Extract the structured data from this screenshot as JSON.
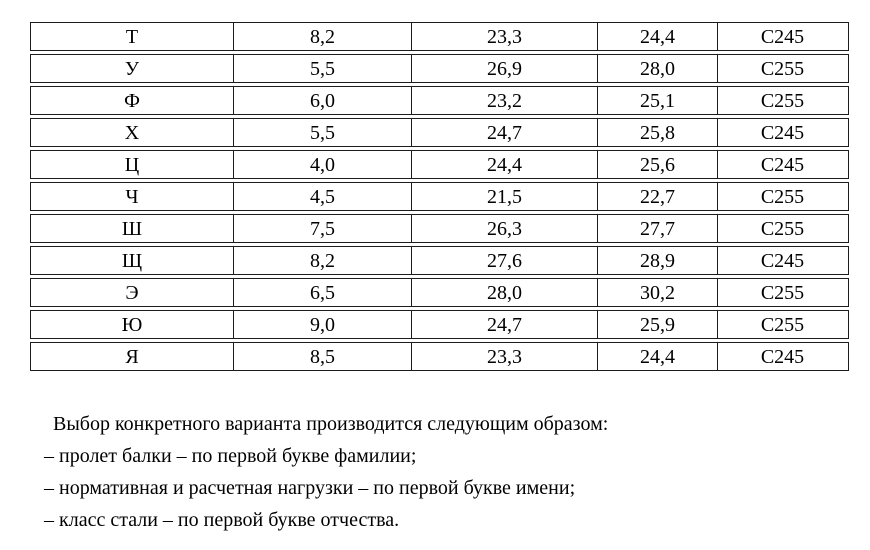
{
  "page": {
    "background": "#ffffff",
    "text_color": "#000000",
    "border_color": "#1c1c1c"
  },
  "table": {
    "rows": [
      [
        "Т",
        "8,2",
        "23,3",
        "24,4",
        "С245"
      ],
      [
        "У",
        "5,5",
        "26,9",
        "28,0",
        "С255"
      ],
      [
        "Ф",
        "6,0",
        "23,2",
        "25,1",
        "С255"
      ],
      [
        "Х",
        "5,5",
        "24,7",
        "25,8",
        "С245"
      ],
      [
        "Ц",
        "4,0",
        "24,4",
        "25,6",
        "С245"
      ],
      [
        "Ч",
        "4,5",
        "21,5",
        "22,7",
        "С255"
      ],
      [
        "Ш",
        "7,5",
        "26,3",
        "27,7",
        "С255"
      ],
      [
        "Щ",
        "8,2",
        "27,6",
        "28,9",
        "С245"
      ],
      [
        "Э",
        "6,5",
        "28,0",
        "30,2",
        "С255"
      ],
      [
        "Ю",
        "9,0",
        "24,7",
        "25,9",
        "С255"
      ],
      [
        "Я",
        "8,5",
        "23,3",
        "24,4",
        "С245"
      ]
    ]
  },
  "notes": {
    "intro": "Выбор конкретного варианта производится следующим образом:",
    "items": [
      "– пролет балки – по первой букве фамилии;",
      "– нормативная и расчетная нагрузки – по первой букве имени;",
      "– класс стали – по первой букве отчества."
    ]
  }
}
